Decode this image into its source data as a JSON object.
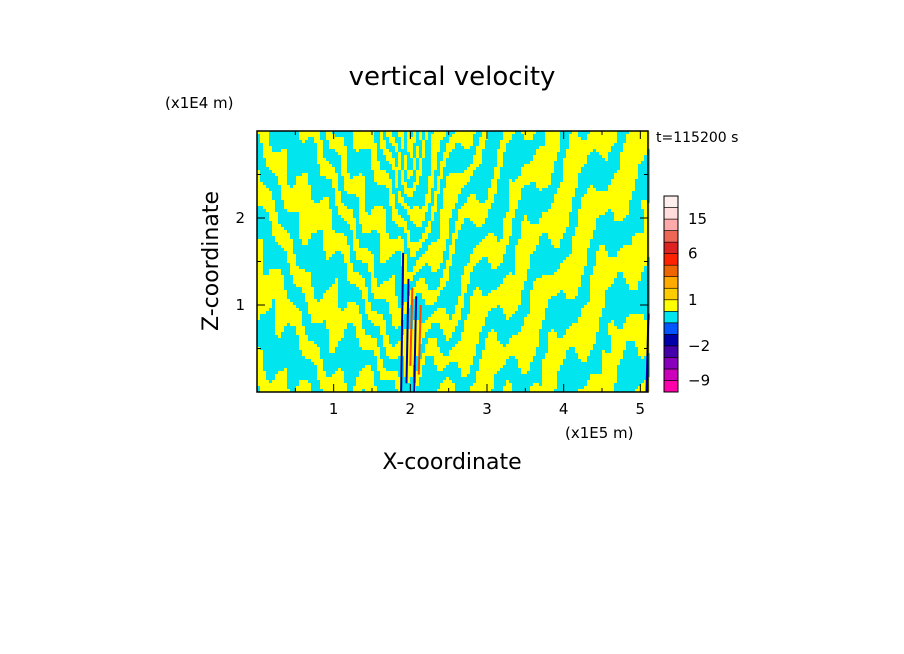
{
  "chart_data": {
    "type": "heatmap",
    "title": "vertical velocity",
    "xlabel": "X-coordinate",
    "ylabel": "Z-coordinate",
    "x_unit": "(x1E5 m)",
    "y_unit": "(x1E4 m)",
    "time_label": "t=115200 s",
    "xlim": [
      0,
      5.1
    ],
    "ylim": [
      0,
      3.0
    ],
    "x_ticks": [
      1,
      2,
      3,
      4,
      5
    ],
    "x_tick_labels": [
      "1",
      "2",
      "3",
      "4",
      "5"
    ],
    "y_ticks": [
      1,
      2
    ],
    "y_tick_labels": [
      "1",
      "2"
    ],
    "colorbar": {
      "levels": [
        -12,
        -9,
        -6,
        -3,
        -2,
        -1,
        0,
        0.5,
        1,
        1.5,
        2,
        4,
        6,
        9,
        12,
        15,
        18,
        24
      ],
      "colors": [
        "#ff00aa",
        "#cc00bb",
        "#8800bb",
        "#4400aa",
        "#0000aa",
        "#0055ff",
        "#00e5ee",
        "#ffff00",
        "#ffcc00",
        "#ffaa00",
        "#ee6600",
        "#ff2200",
        "#dd2222",
        "#ee6655",
        "#ffaaaa",
        "#ffdddd",
        "#ffeeee"
      ],
      "tick_values": [
        15,
        6,
        1,
        -2,
        -9
      ],
      "tick_labels": [
        "15",
        "6",
        "1",
        "−2",
        "−9"
      ]
    },
    "field_colors": {
      "negative": "#00e5ee",
      "positive": "#ffff00",
      "strong_negative": "#0000aa",
      "strong_positive": "#ff4400"
    },
    "pattern": {
      "dominant": "alternating tilted updraft/downdraft bands (gravity waves) fanning out from a vertical plume near x=2.0",
      "plume_x": 2.0
    }
  }
}
